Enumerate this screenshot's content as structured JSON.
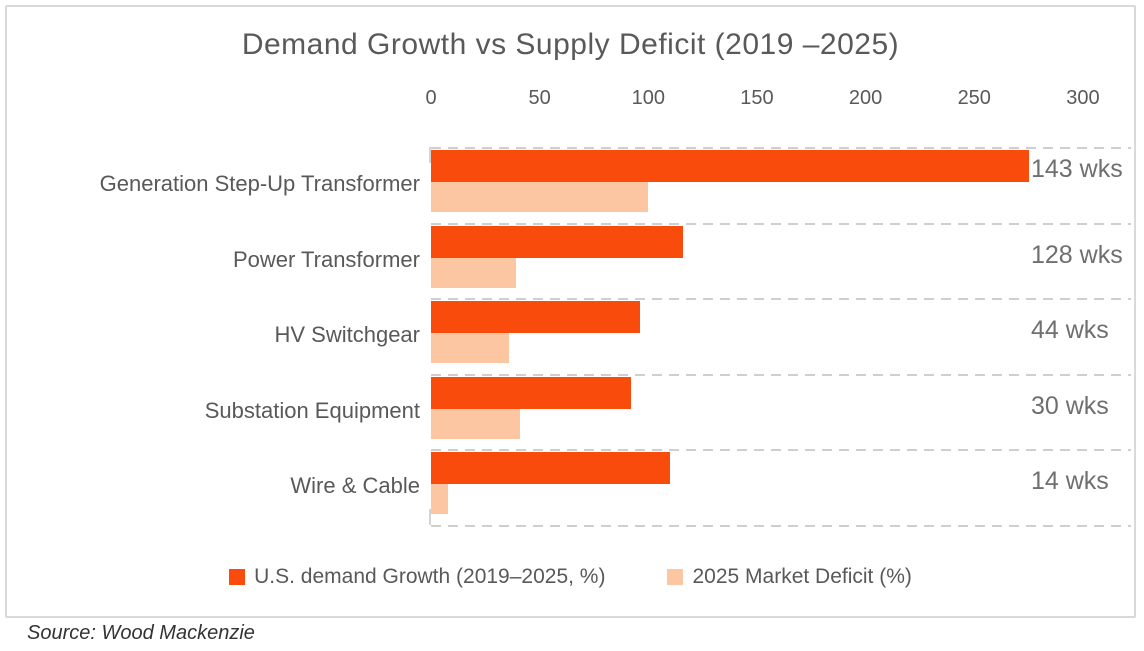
{
  "title": "Demand Growth vs Supply Deficit (2019 –2025)",
  "source": "Source: Wood Mackenzie",
  "colors": {
    "demand": "#F94B0B",
    "deficit": "#FCC6A2",
    "grid": "#CFCFCF",
    "text_gray": "#595959",
    "wks_gray": "#6F6F6F",
    "frame_border": "#D9D9D9"
  },
  "chart_data": {
    "type": "bar",
    "orientation": "horizontal",
    "title": "Demand Growth vs Supply Deficit (2019 –2025)",
    "categories": [
      "Generation Step-Up Transformer",
      "Power Transformer",
      "HV Switchgear",
      "Substation Equipment",
      "Wire & Cable"
    ],
    "series": [
      {
        "name": "U.S. demand Growth (2019–2025, %)",
        "color_key": "demand",
        "values": [
          275,
          116,
          96,
          92,
          110
        ]
      },
      {
        "name": "2025 Market Deficit (%)",
        "color_key": "deficit",
        "values": [
          100,
          39,
          36,
          41,
          8
        ]
      }
    ],
    "right_labels": [
      "143 wks",
      "128 wks",
      "44 wks",
      "30 wks",
      "14 wks"
    ],
    "x_ticks": [
      0,
      50,
      100,
      150,
      200,
      250,
      300
    ],
    "xlim": [
      0,
      300
    ],
    "grid": "dashed horizontal separators between category rows",
    "legend_position": "bottom-center",
    "axis_position": "top"
  }
}
